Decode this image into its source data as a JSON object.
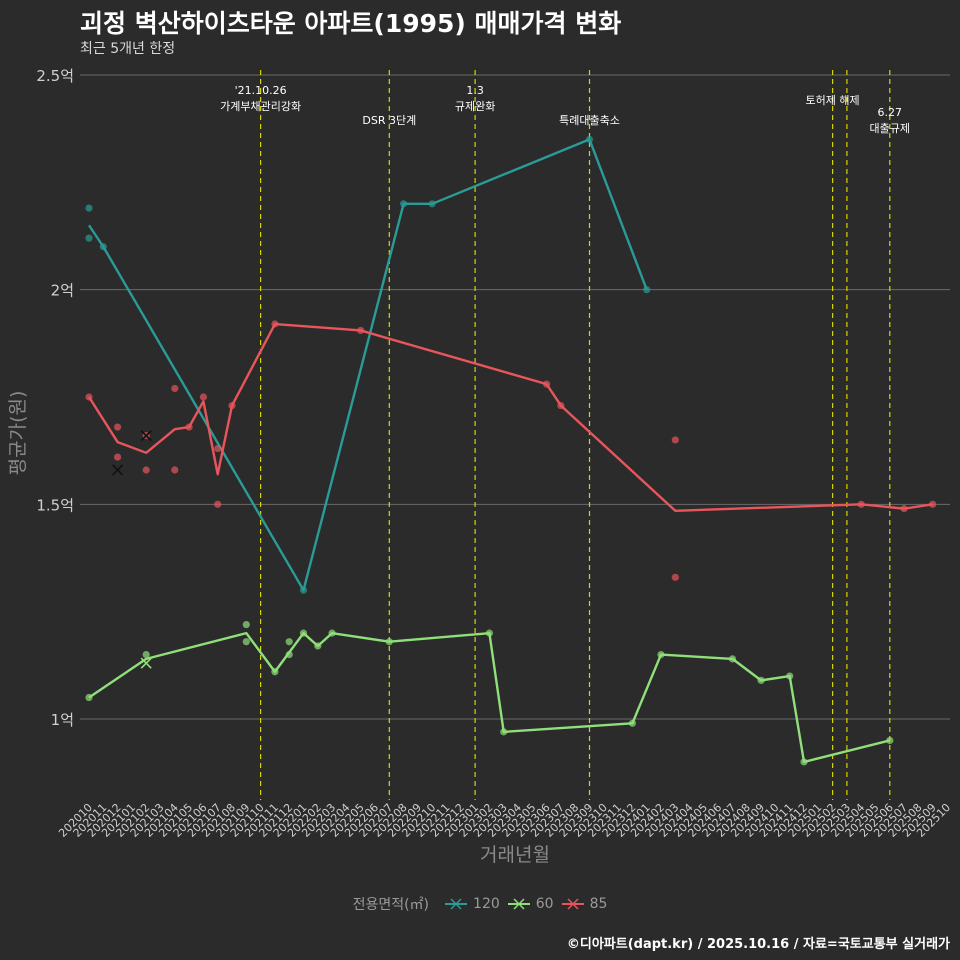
{
  "title": "괴정 벽산하이츠타운 아파트(1995) 매매가격 변화",
  "subtitle": "최근 5개년 한정",
  "footer": "©디아파트(dapt.kr) / 2025.10.16 / 자료=국토교통부 실거래가",
  "chart_data": {
    "type": "line",
    "xlabel": "거래년월",
    "ylabel": "평균가(원)",
    "ylim": [
      0.85,
      2.51
    ],
    "yticks": [
      {
        "value": 1.0,
        "label": "1억"
      },
      {
        "value": 1.5,
        "label": "1.5억"
      },
      {
        "value": 2.0,
        "label": "2억"
      },
      {
        "value": 2.5,
        "label": "2.5억"
      }
    ],
    "x_categories": [
      "202010",
      "202011",
      "202012",
      "202101",
      "202102",
      "202103",
      "202104",
      "202105",
      "202106",
      "202107",
      "202108",
      "202109",
      "202110",
      "202111",
      "202112",
      "202201",
      "202202",
      "202203",
      "202204",
      "202205",
      "202206",
      "202207",
      "202208",
      "202209",
      "202210",
      "202211",
      "202212",
      "202301",
      "202302",
      "202303",
      "202304",
      "202305",
      "202306",
      "202307",
      "202308",
      "202309",
      "202310",
      "202311",
      "202312",
      "202401",
      "202402",
      "202403",
      "202404",
      "202405",
      "202406",
      "202407",
      "202408",
      "202409",
      "202410",
      "202411",
      "202412",
      "202501",
      "202502",
      "202503",
      "202504",
      "202505",
      "202506",
      "202507",
      "202508",
      "202509",
      "202510"
    ],
    "legend_title": "전용면적(㎡)",
    "series": [
      {
        "name": "120",
        "color": "#2a9b96",
        "line": [
          [
            "202010",
            2.15
          ],
          [
            "202011",
            2.1
          ],
          [
            "202201",
            1.3
          ],
          [
            "202208",
            2.2
          ],
          [
            "202210",
            2.2
          ],
          [
            "202309",
            2.35
          ],
          [
            "202401",
            2.0
          ]
        ],
        "points": [
          [
            "202010",
            2.19
          ],
          [
            "202010",
            2.12
          ],
          [
            "202011",
            2.1
          ],
          [
            "202201",
            1.3
          ],
          [
            "202208",
            2.2
          ],
          [
            "202210",
            2.2
          ],
          [
            "202309",
            2.35
          ],
          [
            "202401",
            2.0
          ]
        ],
        "cross_points": []
      },
      {
        "name": "60",
        "color": "#8fe07a",
        "line": [
          [
            "202010",
            1.05
          ],
          [
            "202102",
            1.14
          ],
          [
            "202109",
            1.2
          ],
          [
            "202111",
            1.11
          ],
          [
            "202201",
            1.2
          ],
          [
            "202202",
            1.17
          ],
          [
            "202203",
            1.2
          ],
          [
            "202207",
            1.18
          ],
          [
            "202302",
            1.2
          ],
          [
            "202303",
            0.97
          ],
          [
            "202312",
            0.99
          ],
          [
            "202402",
            1.15
          ],
          [
            "202407",
            1.14
          ],
          [
            "202409",
            1.09
          ],
          [
            "202411",
            1.1
          ],
          [
            "202412",
            0.9
          ],
          [
            "202506",
            0.95
          ]
        ],
        "points": [
          [
            "202010",
            1.05
          ],
          [
            "202102",
            1.15
          ],
          [
            "202109",
            1.22
          ],
          [
            "202109",
            1.18
          ],
          [
            "202111",
            1.11
          ],
          [
            "202112",
            1.18
          ],
          [
            "202112",
            1.15
          ],
          [
            "202201",
            1.2
          ],
          [
            "202202",
            1.17
          ],
          [
            "202203",
            1.2
          ],
          [
            "202207",
            1.18
          ],
          [
            "202302",
            1.2
          ],
          [
            "202303",
            0.97
          ],
          [
            "202312",
            0.99
          ],
          [
            "202402",
            1.15
          ],
          [
            "202407",
            1.14
          ],
          [
            "202409",
            1.09
          ],
          [
            "202411",
            1.1
          ],
          [
            "202412",
            0.9
          ],
          [
            "202506",
            0.95
          ]
        ],
        "cross_points": [
          [
            "202102",
            1.13
          ]
        ]
      },
      {
        "name": "85",
        "color": "#e8565b",
        "line": [
          [
            "202010",
            1.75
          ],
          [
            "202012",
            1.645
          ],
          [
            "202102",
            1.62
          ],
          [
            "202104",
            1.675
          ],
          [
            "202105",
            1.68
          ],
          [
            "202106",
            1.74
          ],
          [
            "202107",
            1.57
          ],
          [
            "202108",
            1.73
          ],
          [
            "202111",
            1.92
          ],
          [
            "202205",
            1.905
          ],
          [
            "202306",
            1.78
          ],
          [
            "202307",
            1.73
          ],
          [
            "202403",
            1.485
          ],
          [
            "202504",
            1.5
          ],
          [
            "202507",
            1.49
          ],
          [
            "202509",
            1.5
          ]
        ],
        "points": [
          [
            "202010",
            1.75
          ],
          [
            "202012",
            1.68
          ],
          [
            "202012",
            1.61
          ],
          [
            "202102",
            1.66
          ],
          [
            "202102",
            1.58
          ],
          [
            "202104",
            1.77
          ],
          [
            "202104",
            1.58
          ],
          [
            "202105",
            1.68
          ],
          [
            "202106",
            1.75
          ],
          [
            "202107",
            1.63
          ],
          [
            "202107",
            1.5
          ],
          [
            "202108",
            1.73
          ],
          [
            "202111",
            1.92
          ],
          [
            "202205",
            1.905
          ],
          [
            "202306",
            1.78
          ],
          [
            "202307",
            1.73
          ],
          [
            "202403",
            1.65
          ],
          [
            "202403",
            1.33
          ],
          [
            "202504",
            1.5
          ],
          [
            "202507",
            1.49
          ],
          [
            "202509",
            1.5
          ]
        ],
        "cross_points": [
          [
            "202012",
            1.58
          ],
          [
            "202102",
            1.66
          ]
        ]
      }
    ],
    "events": [
      {
        "month": "202110",
        "lines": [
          "'21.10.26",
          "가계부채관리강화"
        ]
      },
      {
        "month": "202207",
        "lines": [
          "DSR 3단계"
        ]
      },
      {
        "month": "202301",
        "lines": [
          "1.3",
          "규제완화"
        ]
      },
      {
        "month": "202309",
        "lines": [
          "특례대출축소"
        ]
      },
      {
        "month": "202502",
        "lines": [
          "토허제 해제"
        ]
      },
      {
        "month": "202503",
        "lines": []
      },
      {
        "month": "202506",
        "lines": [
          "6.27",
          "대출규제"
        ]
      }
    ]
  }
}
